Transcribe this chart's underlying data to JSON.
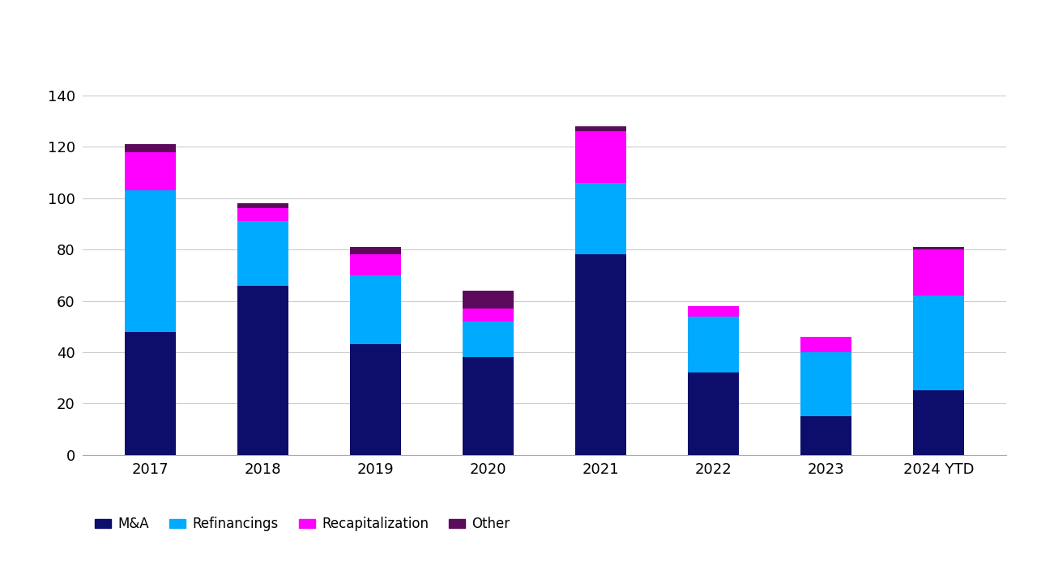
{
  "categories": [
    "2017",
    "2018",
    "2019",
    "2020",
    "2021",
    "2022",
    "2023",
    "2024 YTD"
  ],
  "ma": [
    48,
    66,
    43,
    38,
    78,
    32,
    15,
    25
  ],
  "refinancings": [
    55,
    25,
    27,
    14,
    28,
    22,
    25,
    37
  ],
  "recapitalization": [
    15,
    5,
    8,
    5,
    20,
    4,
    6,
    18
  ],
  "other": [
    3,
    2,
    3,
    7,
    2,
    0,
    0,
    1
  ],
  "colors": {
    "ma": "#0d0d6b",
    "refinancings": "#00aaff",
    "recapitalization": "#ff00ff",
    "other": "#5c0a5c"
  },
  "ylim": [
    0,
    150
  ],
  "yticks": [
    0,
    20,
    40,
    60,
    80,
    100,
    120,
    140
  ],
  "legend_labels": [
    "M&A",
    "Refinancings",
    "Recapitalization",
    "Other"
  ],
  "background_color": "#ffffff",
  "grid_color": "#cccccc"
}
